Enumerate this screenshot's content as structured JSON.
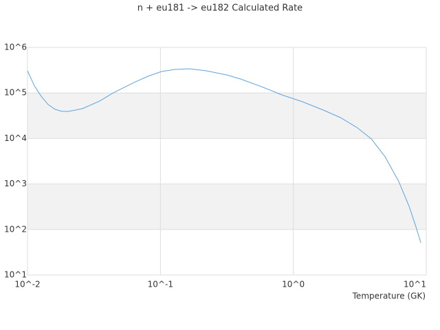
{
  "chart_data": {
    "type": "line",
    "title": "n + eu181 -> eu182 Calculated Rate",
    "x_label": "Temperature (GK)",
    "x": [
      0.01,
      0.01127,
      0.01268,
      0.01429,
      0.0161,
      0.01815,
      0.02043,
      0.02594,
      0.0349,
      0.0443,
      0.0634,
      0.0804,
      0.102,
      0.1294,
      0.1643,
      0.2213,
      0.316,
      0.402,
      0.574,
      0.82,
      1.172,
      1.675,
      2.26,
      3.04,
      3.86,
      4.9,
      6.21,
      7.43,
      8.37,
      9.1
    ],
    "values": [
      306000,
      143000,
      84500,
      55700,
      43700,
      39400,
      39400,
      45300,
      66400,
      101000,
      170000,
      232000,
      296000,
      329000,
      340000,
      306000,
      249000,
      202000,
      138000,
      90700,
      64100,
      42200,
      28800,
      17100,
      9800,
      3960,
      1130,
      324,
      114,
      51.3
    ],
    "color": "#5ba3e0",
    "log_x": true,
    "log_y": true,
    "grid": true,
    "xlim": [
      0.01,
      10
    ],
    "ylim": [
      10,
      1000000
    ],
    "xticks": [
      {
        "value": 0.01,
        "label": "10^-2"
      },
      {
        "value": 0.1,
        "label": "10^-1"
      },
      {
        "value": 1,
        "label": "10^0"
      },
      {
        "value": 10,
        "label": "10^1"
      }
    ],
    "yticks": [
      {
        "value": 10,
        "label": "10^1"
      },
      {
        "value": 100,
        "label": "10^2"
      },
      {
        "value": 1000,
        "label": "10^3"
      },
      {
        "value": 10000,
        "label": "10^4"
      },
      {
        "value": 100000,
        "label": "10^5"
      },
      {
        "value": 1000000,
        "label": "10^6"
      }
    ]
  }
}
